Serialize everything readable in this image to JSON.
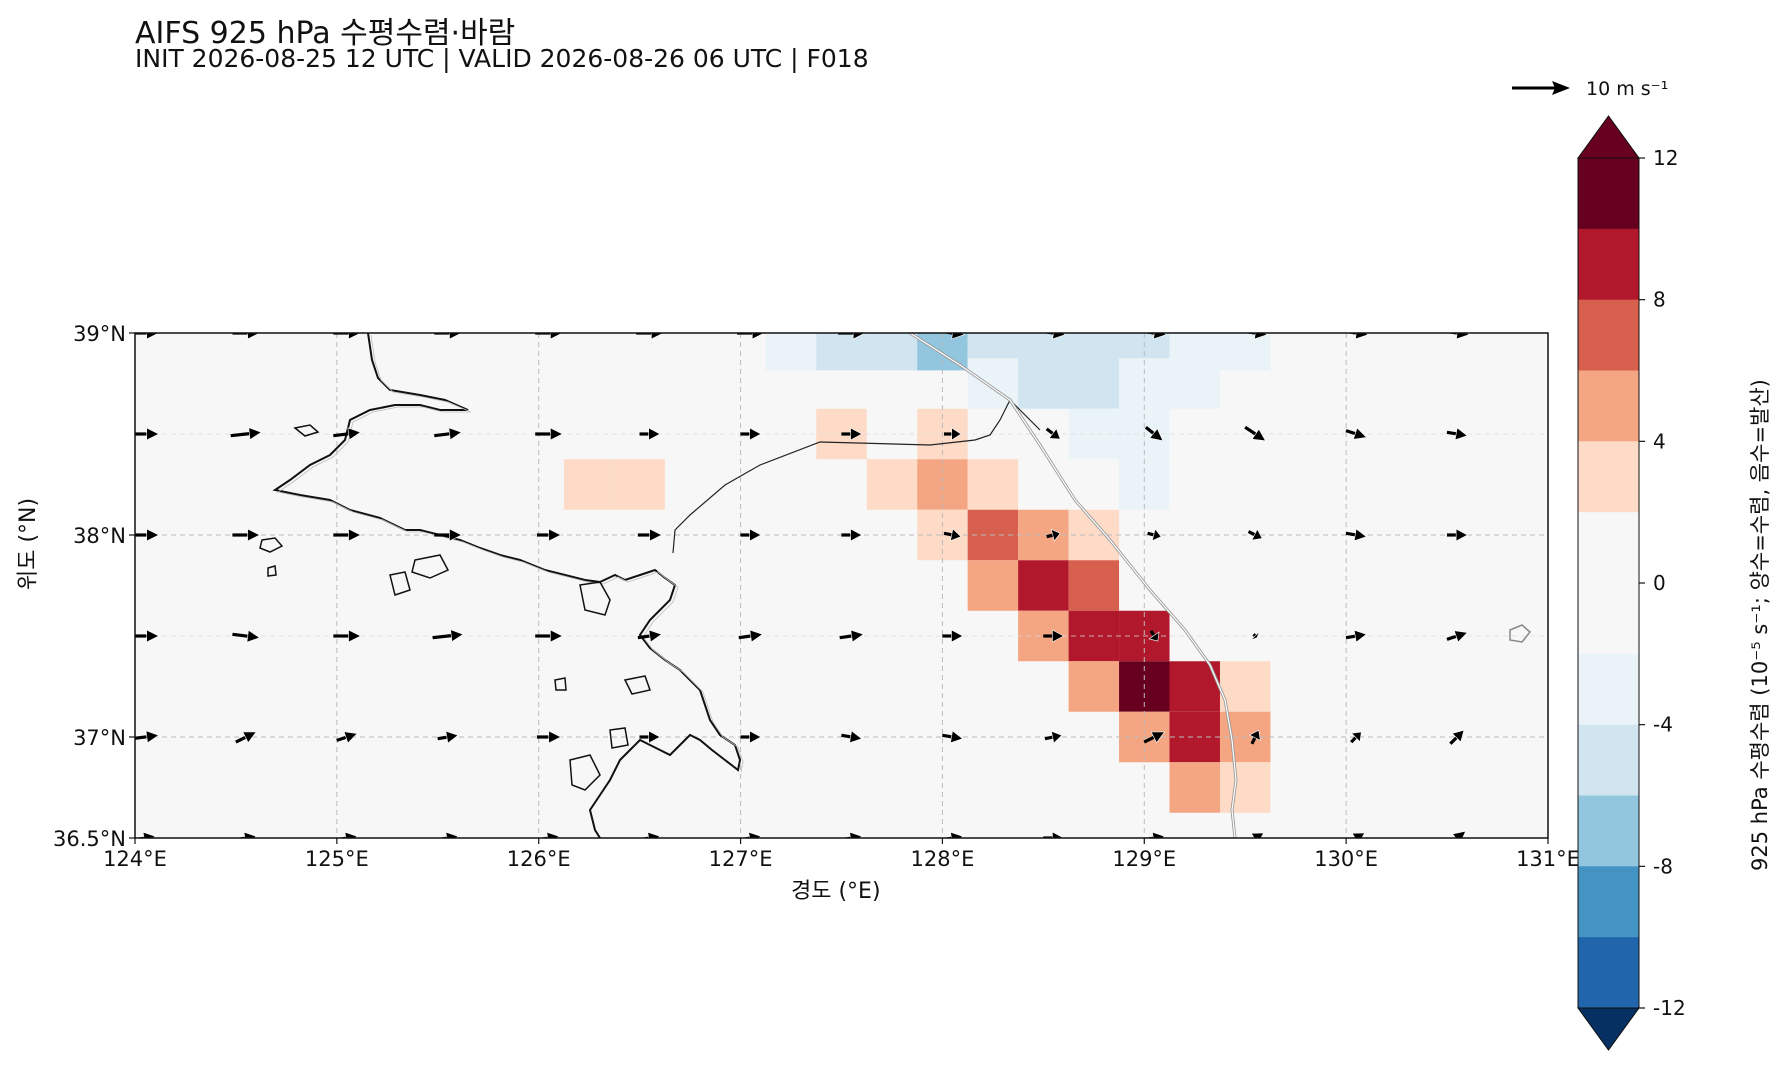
{
  "title": "AIFS 925 hPa 수평수렴·바람",
  "subtitle": "INIT 2026-08-25 12 UTC | VALID 2026-08-26 06 UTC | F018",
  "axes": {
    "xlabel": "경도 (°E)",
    "ylabel": "위도 (°N)",
    "xticks": [
      "124°E",
      "125°E",
      "126°E",
      "127°E",
      "128°E",
      "129°E",
      "130°E",
      "131°E"
    ],
    "yticks": [
      "36.5°N",
      "37°N",
      "38°N",
      "39°N"
    ],
    "lon_range": [
      124,
      131
    ],
    "lat_range": [
      36.5,
      39
    ],
    "grid": "dashed"
  },
  "colorbar": {
    "label": "925 hPa 수평수렴 (10⁻⁵ s⁻¹; 양수=수렴, 음수=발산)",
    "tick_labels": [
      "12",
      "8",
      "4",
      "0",
      "-4",
      "-8",
      "-12"
    ],
    "colors": {
      "gt10": "#67001f",
      "8": "#b2182b",
      "6": "#d6604d",
      "4": "#f4a582",
      "2": "#fddbc7",
      "0": "#f7f7f7",
      "m2": "#eaf4f8",
      "m4": "#d1e5f0",
      "m6": "#92c5de",
      "m8": "#4393c3",
      "m10": "#2166ac",
      "ltm12": "#053061"
    }
  },
  "reference_vector": {
    "label": "10 m s⁻¹"
  },
  "chart_data": {
    "type": "heatmap",
    "variable": "925 hPa 수평수렴",
    "cells": [
      {
        "lon": 127.25,
        "lat": 38.94,
        "value": -2.5
      },
      {
        "lon": 127.5,
        "lat": 38.94,
        "value": -4.5
      },
      {
        "lon": 127.75,
        "lat": 38.94,
        "value": -4.5
      },
      {
        "lon": 128.0,
        "lat": 38.94,
        "value": -7.0
      },
      {
        "lon": 128.25,
        "lat": 38.94,
        "value": -4.5
      },
      {
        "lon": 128.5,
        "lat": 38.94,
        "value": -4.5
      },
      {
        "lon": 128.75,
        "lat": 38.94,
        "value": -4.5
      },
      {
        "lon": 129.0,
        "lat": 38.94,
        "value": -4.5
      },
      {
        "lon": 129.25,
        "lat": 38.94,
        "value": -2.5
      },
      {
        "lon": 129.5,
        "lat": 38.94,
        "value": -2.5
      },
      {
        "lon": 128.25,
        "lat": 38.75,
        "value": -2.5
      },
      {
        "lon": 128.5,
        "lat": 38.75,
        "value": -4.5
      },
      {
        "lon": 128.75,
        "lat": 38.75,
        "value": -4.5
      },
      {
        "lon": 129.0,
        "lat": 38.75,
        "value": -2.5
      },
      {
        "lon": 129.25,
        "lat": 38.75,
        "value": -2.5
      },
      {
        "lon": 127.5,
        "lat": 38.5,
        "value": 3
      },
      {
        "lon": 128.0,
        "lat": 38.5,
        "value": 3
      },
      {
        "lon": 128.75,
        "lat": 38.5,
        "value": -2.5
      },
      {
        "lon": 129.0,
        "lat": 38.5,
        "value": -2.5
      },
      {
        "lon": 126.25,
        "lat": 38.25,
        "value": 3
      },
      {
        "lon": 126.5,
        "lat": 38.25,
        "value": 3
      },
      {
        "lon": 127.75,
        "lat": 38.25,
        "value": 3
      },
      {
        "lon": 128.0,
        "lat": 38.25,
        "value": 5
      },
      {
        "lon": 128.25,
        "lat": 38.25,
        "value": 3
      },
      {
        "lon": 129.0,
        "lat": 38.25,
        "value": -2.5
      },
      {
        "lon": 128.0,
        "lat": 38.0,
        "value": 3
      },
      {
        "lon": 128.25,
        "lat": 38.0,
        "value": 7
      },
      {
        "lon": 128.5,
        "lat": 38.0,
        "value": 5
      },
      {
        "lon": 128.75,
        "lat": 38.0,
        "value": 3
      },
      {
        "lon": 128.25,
        "lat": 37.75,
        "value": 5
      },
      {
        "lon": 128.5,
        "lat": 37.75,
        "value": 9
      },
      {
        "lon": 128.75,
        "lat": 37.75,
        "value": 7
      },
      {
        "lon": 128.5,
        "lat": 37.5,
        "value": 5
      },
      {
        "lon": 128.75,
        "lat": 37.5,
        "value": 9
      },
      {
        "lon": 129.0,
        "lat": 37.5,
        "value": 9
      },
      {
        "lon": 128.75,
        "lat": 37.25,
        "value": 5
      },
      {
        "lon": 129.0,
        "lat": 37.25,
        "value": 11
      },
      {
        "lon": 129.25,
        "lat": 37.25,
        "value": 9
      },
      {
        "lon": 129.5,
        "lat": 37.25,
        "value": 3
      },
      {
        "lon": 129.0,
        "lat": 37.0,
        "value": 5
      },
      {
        "lon": 129.25,
        "lat": 37.0,
        "value": 9
      },
      {
        "lon": 129.5,
        "lat": 37.0,
        "value": 5
      },
      {
        "lon": 129.25,
        "lat": 36.75,
        "value": 5
      },
      {
        "lon": 129.5,
        "lat": 36.75,
        "value": 3
      }
    ],
    "wind_vectors": [
      {
        "lon": 124.05,
        "lat": 39.0,
        "u": 8,
        "v": 0
      },
      {
        "lon": 124.55,
        "lat": 39.0,
        "u": 8,
        "v": 0
      },
      {
        "lon": 125.05,
        "lat": 39.0,
        "u": 8,
        "v": 0
      },
      {
        "lon": 125.55,
        "lat": 39.0,
        "u": 8,
        "v": 0
      },
      {
        "lon": 126.05,
        "lat": 39.0,
        "u": 8,
        "v": 0
      },
      {
        "lon": 126.55,
        "lat": 39.0,
        "u": 8,
        "v": 0
      },
      {
        "lon": 127.05,
        "lat": 39.0,
        "u": 8,
        "v": 0
      },
      {
        "lon": 127.55,
        "lat": 39.0,
        "u": 8,
        "v": 0
      },
      {
        "lon": 128.05,
        "lat": 39.0,
        "u": 7,
        "v": -1
      },
      {
        "lon": 128.55,
        "lat": 39.0,
        "u": 7,
        "v": -1
      },
      {
        "lon": 129.05,
        "lat": 39.0,
        "u": 7,
        "v": -1
      },
      {
        "lon": 129.55,
        "lat": 39.0,
        "u": 7,
        "v": -1
      },
      {
        "lon": 130.05,
        "lat": 39.0,
        "u": 7,
        "v": -1
      },
      {
        "lon": 130.55,
        "lat": 39.0,
        "u": 7,
        "v": -1
      },
      {
        "lon": 124.05,
        "lat": 38.5,
        "u": 8,
        "v": 0
      },
      {
        "lon": 124.55,
        "lat": 38.5,
        "u": 9,
        "v": 1
      },
      {
        "lon": 125.05,
        "lat": 38.5,
        "u": 8,
        "v": 1
      },
      {
        "lon": 125.55,
        "lat": 38.5,
        "u": 8,
        "v": 1
      },
      {
        "lon": 126.05,
        "lat": 38.5,
        "u": 8,
        "v": 0
      },
      {
        "lon": 126.55,
        "lat": 38.5,
        "u": 6,
        "v": 0
      },
      {
        "lon": 127.05,
        "lat": 38.5,
        "u": 6,
        "v": 0
      },
      {
        "lon": 127.55,
        "lat": 38.5,
        "u": 6,
        "v": 0
      },
      {
        "lon": 128.05,
        "lat": 38.5,
        "u": 5,
        "v": 0
      },
      {
        "lon": 128.55,
        "lat": 38.5,
        "u": 4,
        "v": -3
      },
      {
        "lon": 129.05,
        "lat": 38.5,
        "u": 5,
        "v": -4
      },
      {
        "lon": 129.55,
        "lat": 38.5,
        "u": 6,
        "v": -4
      },
      {
        "lon": 130.05,
        "lat": 38.5,
        "u": 6,
        "v": -2
      },
      {
        "lon": 130.55,
        "lat": 38.5,
        "u": 6,
        "v": -1
      },
      {
        "lon": 124.05,
        "lat": 38.0,
        "u": 8,
        "v": 0
      },
      {
        "lon": 124.55,
        "lat": 38.0,
        "u": 8,
        "v": 0
      },
      {
        "lon": 125.05,
        "lat": 38.0,
        "u": 8,
        "v": 0
      },
      {
        "lon": 125.55,
        "lat": 38.0,
        "u": 8,
        "v": 0
      },
      {
        "lon": 126.05,
        "lat": 38.0,
        "u": 7,
        "v": 0
      },
      {
        "lon": 126.55,
        "lat": 38.0,
        "u": 7,
        "v": 0
      },
      {
        "lon": 127.05,
        "lat": 38.0,
        "u": 6,
        "v": 0
      },
      {
        "lon": 127.55,
        "lat": 38.0,
        "u": 6,
        "v": 0
      },
      {
        "lon": 128.05,
        "lat": 38.0,
        "u": 5,
        "v": -1
      },
      {
        "lon": 128.55,
        "lat": 38.0,
        "u": 4,
        "v": 1
      },
      {
        "lon": 129.05,
        "lat": 38.0,
        "u": 4,
        "v": -1
      },
      {
        "lon": 129.55,
        "lat": 38.0,
        "u": 4,
        "v": -2
      },
      {
        "lon": 130.05,
        "lat": 38.0,
        "u": 6,
        "v": -1
      },
      {
        "lon": 130.55,
        "lat": 38.0,
        "u": 6,
        "v": 0
      },
      {
        "lon": 124.05,
        "lat": 37.5,
        "u": 8,
        "v": 0
      },
      {
        "lon": 124.55,
        "lat": 37.5,
        "u": 8,
        "v": -1
      },
      {
        "lon": 125.05,
        "lat": 37.5,
        "u": 8,
        "v": 0
      },
      {
        "lon": 125.55,
        "lat": 37.5,
        "u": 9,
        "v": 1
      },
      {
        "lon": 126.05,
        "lat": 37.5,
        "u": 8,
        "v": 0
      },
      {
        "lon": 126.55,
        "lat": 37.5,
        "u": 7,
        "v": 1
      },
      {
        "lon": 127.05,
        "lat": 37.5,
        "u": 7,
        "v": 1
      },
      {
        "lon": 127.55,
        "lat": 37.5,
        "u": 7,
        "v": 1
      },
      {
        "lon": 128.05,
        "lat": 37.5,
        "u": 6,
        "v": 0
      },
      {
        "lon": 128.55,
        "lat": 37.5,
        "u": 6,
        "v": 0
      },
      {
        "lon": 129.05,
        "lat": 37.5,
        "u": 2,
        "v": -3
      },
      {
        "lon": 129.55,
        "lat": 37.5,
        "u": 1,
        "v": -1
      },
      {
        "lon": 130.05,
        "lat": 37.5,
        "u": 6,
        "v": 1
      },
      {
        "lon": 130.55,
        "lat": 37.5,
        "u": 6,
        "v": 2
      },
      {
        "lon": 124.05,
        "lat": 37.0,
        "u": 8,
        "v": 1
      },
      {
        "lon": 124.55,
        "lat": 37.0,
        "u": 6,
        "v": 3
      },
      {
        "lon": 125.05,
        "lat": 37.0,
        "u": 6,
        "v": 2
      },
      {
        "lon": 125.55,
        "lat": 37.0,
        "u": 6,
        "v": 1
      },
      {
        "lon": 126.05,
        "lat": 37.0,
        "u": 7,
        "v": 0
      },
      {
        "lon": 126.55,
        "lat": 37.0,
        "u": 6,
        "v": 0
      },
      {
        "lon": 127.05,
        "lat": 37.0,
        "u": 6,
        "v": 0
      },
      {
        "lon": 127.55,
        "lat": 37.0,
        "u": 6,
        "v": -1
      },
      {
        "lon": 128.05,
        "lat": 37.0,
        "u": 6,
        "v": -1
      },
      {
        "lon": 128.55,
        "lat": 37.0,
        "u": 5,
        "v": 1
      },
      {
        "lon": 129.05,
        "lat": 37.0,
        "u": 6,
        "v": 3
      },
      {
        "lon": 129.55,
        "lat": 37.0,
        "u": 2,
        "v": 4
      },
      {
        "lon": 130.05,
        "lat": 37.0,
        "u": 3,
        "v": 3
      },
      {
        "lon": 130.55,
        "lat": 37.0,
        "u": 4,
        "v": 4
      },
      {
        "lon": 124.05,
        "lat": 36.5,
        "u": 6,
        "v": 1
      },
      {
        "lon": 124.55,
        "lat": 36.5,
        "u": 6,
        "v": 1
      },
      {
        "lon": 125.05,
        "lat": 36.5,
        "u": 6,
        "v": 1
      },
      {
        "lon": 125.55,
        "lat": 36.5,
        "u": 6,
        "v": 1
      },
      {
        "lon": 126.05,
        "lat": 36.5,
        "u": 6,
        "v": 1
      },
      {
        "lon": 126.55,
        "lat": 36.5,
        "u": 6,
        "v": 1
      },
      {
        "lon": 127.05,
        "lat": 36.5,
        "u": 6,
        "v": 1
      },
      {
        "lon": 127.55,
        "lat": 36.5,
        "u": 6,
        "v": 1
      },
      {
        "lon": 128.05,
        "lat": 36.5,
        "u": 6,
        "v": 1
      },
      {
        "lon": 128.55,
        "lat": 36.5,
        "u": 6,
        "v": 0
      },
      {
        "lon": 129.05,
        "lat": 36.5,
        "u": 6,
        "v": 1
      },
      {
        "lon": 129.55,
        "lat": 36.5,
        "u": 5,
        "v": 3
      },
      {
        "lon": 130.05,
        "lat": 36.5,
        "u": 5,
        "v": 3
      },
      {
        "lon": 130.55,
        "lat": 36.5,
        "u": 5,
        "v": 4
      }
    ],
    "reference_vector_speed": 10
  }
}
